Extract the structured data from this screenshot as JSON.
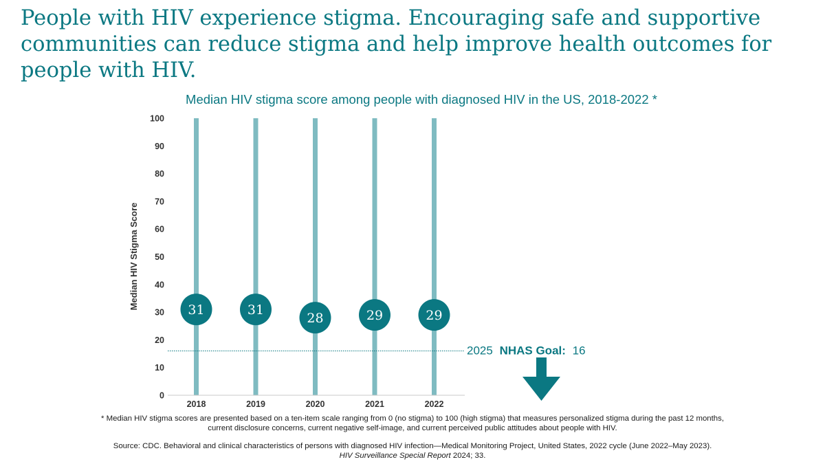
{
  "headline": "People with HIV experience stigma. Encouraging safe and supportive communities can reduce stigma and help improve health outcomes for people with HIV.",
  "colors": {
    "teal_dark": "#0b7882",
    "teal_light": "#7fbbc1",
    "axis_text": "#333333"
  },
  "chart_data": {
    "type": "scatter",
    "title": "Median HIV stigma score among people with diagnosed HIV in the US, 2018-2022 *",
    "ylabel": "Median HIV Stigma Score",
    "xlabel": "",
    "ylim": [
      0,
      100
    ],
    "yticks": [
      "0",
      "10",
      "20",
      "30",
      "40",
      "50",
      "60",
      "70",
      "80",
      "90",
      "100"
    ],
    "categories": [
      "2018",
      "2019",
      "2020",
      "2021",
      "2022"
    ],
    "values": [
      31,
      31,
      28,
      29,
      29
    ],
    "value_labels": [
      "31",
      "31",
      "28",
      "29",
      "29"
    ],
    "goal": {
      "value": 16,
      "label_prefix": "2025",
      "label_bold": "NHAS Goal:",
      "label_value": "16"
    },
    "grid": false,
    "legend": "none"
  },
  "footnote": {
    "line1": "* Median HIV stigma scores are presented based on a ten-item scale ranging from 0 (no stigma) to 100 (high stigma) that measures personalized stigma during the past 12 months,",
    "line2": "current disclosure concerns, current negative self-image, and current perceived public attitudes about people with HIV."
  },
  "source": {
    "line1": "Source: CDC. Behavioral and clinical characteristics of persons with diagnosed HIV infection—Medical Monitoring Project, United States, 2022 cycle (June 2022–May 2023).",
    "journal": "HIV Surveillance Special Report",
    "line2_rest": " 2024; 33."
  }
}
